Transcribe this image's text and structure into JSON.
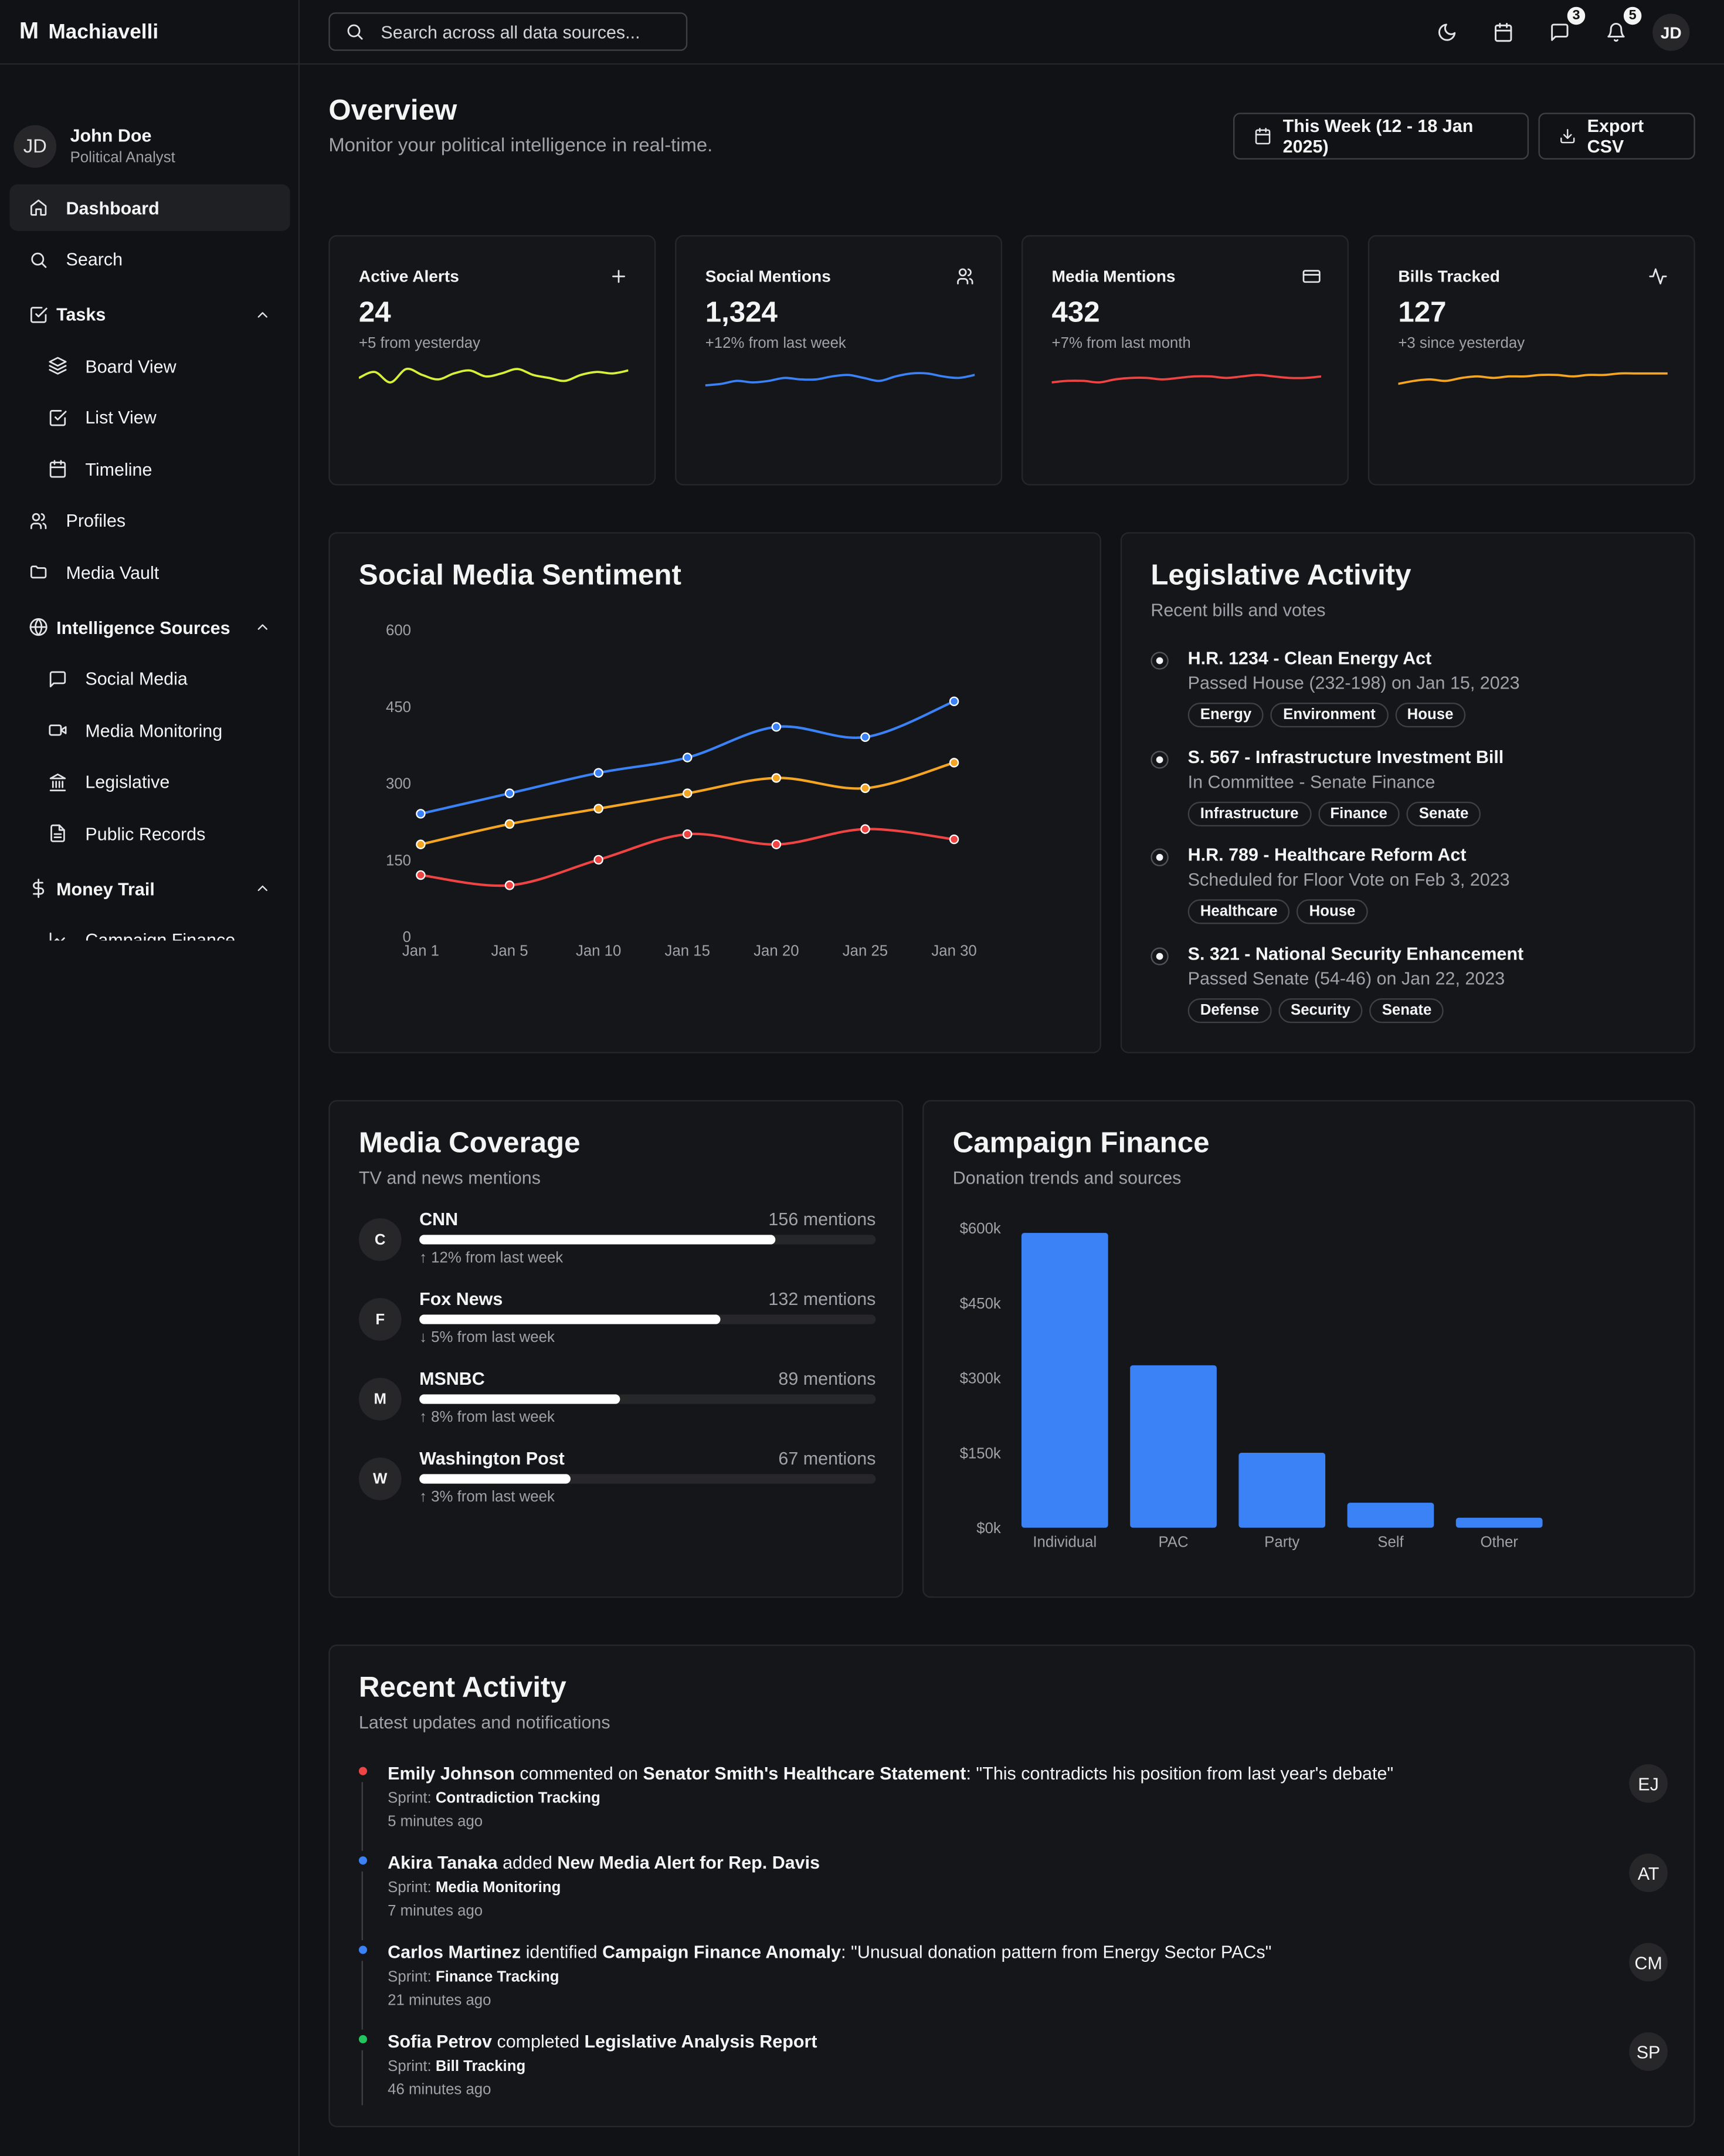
{
  "app": {
    "logo": "M",
    "name": "Machiavelli"
  },
  "user": {
    "initials": "JD",
    "name": "John Doe",
    "role": "Political Analyst"
  },
  "sidebar": {
    "items": [
      {
        "label": "Dashboard",
        "icon": "home-icon",
        "active": true
      },
      {
        "label": "Search",
        "icon": "search-icon"
      }
    ],
    "tasks": {
      "label": "Tasks",
      "items": [
        {
          "label": "Board View",
          "icon": "layers-icon"
        },
        {
          "label": "List View",
          "icon": "check-square-icon"
        },
        {
          "label": "Timeline",
          "icon": "calendar-icon"
        }
      ]
    },
    "items2": [
      {
        "label": "Profiles",
        "icon": "users-icon"
      },
      {
        "label": "Media Vault",
        "icon": "folder-icon"
      }
    ],
    "intel": {
      "label": "Intelligence Sources",
      "items": [
        {
          "label": "Social Media",
          "icon": "message-square-icon"
        },
        {
          "label": "Media Monitoring",
          "icon": "video-icon"
        },
        {
          "label": "Legislative",
          "icon": "landmark-icon"
        },
        {
          "label": "Public Records",
          "icon": "file-text-icon"
        }
      ]
    },
    "money": {
      "label": "Money Trail",
      "items": [
        {
          "label": "Campaign Finance",
          "icon": "chart-icon"
        }
      ]
    }
  },
  "topbar": {
    "search_placeholder": "Search across all data sources...",
    "messages_badge": "3",
    "notifications_badge": "5",
    "avatar": "JD"
  },
  "header": {
    "title": "Overview",
    "subtitle": "Monitor your political intelligence in real-time.",
    "date_range": "This Week (12 - 18 Jan 2025)",
    "export": "Export CSV"
  },
  "stats": [
    {
      "label": "Active Alerts",
      "value": "24",
      "delta": "+5 from yesterday",
      "color": "#d9f03a",
      "icon": "plus-icon",
      "spark": [
        14,
        18,
        11,
        20,
        16,
        13,
        17,
        19,
        15,
        17,
        20,
        16,
        14,
        12,
        16,
        18,
        17,
        19
      ]
    },
    {
      "label": "Social Mentions",
      "value": "1,324",
      "delta": "+12% from last week",
      "color": "#3b82f6",
      "icon": "users-icon",
      "spark": [
        9,
        10,
        12,
        11,
        12,
        14,
        13,
        13,
        15,
        16,
        14,
        12,
        15,
        17,
        17,
        15,
        14,
        16
      ]
    },
    {
      "label": "Media Mentions",
      "value": "432",
      "delta": "+7% from last month",
      "color": "#ef4444",
      "icon": "credit-card-icon",
      "spark": [
        11,
        12,
        12,
        11,
        13,
        14,
        14,
        13,
        14,
        15,
        15,
        14,
        15,
        16,
        15,
        14,
        14,
        15
      ]
    },
    {
      "label": "Bills Tracked",
      "value": "127",
      "delta": "+3 since yesterday",
      "color": "#f5a524",
      "icon": "activity-icon",
      "spark": [
        10,
        12,
        13,
        12,
        14,
        15,
        14,
        15,
        15,
        16,
        16,
        15,
        16,
        16,
        17,
        17,
        17,
        17
      ]
    }
  ],
  "sentiment": {
    "title": "Social Media Sentiment",
    "chart_data": {
      "type": "line",
      "x": [
        "Jan 1",
        "Jan 5",
        "Jan 10",
        "Jan 15",
        "Jan 20",
        "Jan 25",
        "Jan 30"
      ],
      "yticks": [
        0,
        150,
        300,
        450,
        600
      ],
      "ylim": [
        0,
        600
      ],
      "series": [
        {
          "color": "#3b82f6",
          "values": [
            240,
            280,
            320,
            350,
            410,
            390,
            460
          ]
        },
        {
          "color": "#f5a524",
          "values": [
            180,
            220,
            250,
            280,
            310,
            290,
            340
          ]
        },
        {
          "color": "#ef4444",
          "values": [
            120,
            100,
            150,
            200,
            180,
            210,
            190
          ]
        }
      ]
    }
  },
  "legislative": {
    "title": "Legislative Activity",
    "subtitle": "Recent bills and votes",
    "bills": [
      {
        "title": "H.R. 1234 - Clean Energy Act",
        "status": "Passed House (232-198) on Jan 15, 2023",
        "tags": [
          "Energy",
          "Environment",
          "House"
        ]
      },
      {
        "title": "S. 567 - Infrastructure Investment Bill",
        "status": "In Committee - Senate Finance",
        "tags": [
          "Infrastructure",
          "Finance",
          "Senate"
        ]
      },
      {
        "title": "H.R. 789 - Healthcare Reform Act",
        "status": "Scheduled for Floor Vote on Feb 3, 2023",
        "tags": [
          "Healthcare",
          "House"
        ]
      },
      {
        "title": "S. 321 - National Security Enhancement",
        "status": "Passed Senate (54-46) on Jan 22, 2023",
        "tags": [
          "Defense",
          "Security",
          "Senate"
        ]
      }
    ]
  },
  "media": {
    "title": "Media Coverage",
    "subtitle": "TV and news mentions",
    "outlets": [
      {
        "initial": "C",
        "name": "CNN",
        "count": "156 mentions",
        "fill": 0.78,
        "delta": "12% from last week",
        "dir": "up"
      },
      {
        "initial": "F",
        "name": "Fox News",
        "count": "132 mentions",
        "fill": 0.66,
        "delta": "5% from last week",
        "dir": "down"
      },
      {
        "initial": "M",
        "name": "MSNBC",
        "count": "89 mentions",
        "fill": 0.44,
        "delta": "8% from last week",
        "dir": "up"
      },
      {
        "initial": "W",
        "name": "Washington Post",
        "count": "67 mentions",
        "fill": 0.33,
        "delta": "3% from last week",
        "dir": "up"
      }
    ]
  },
  "finance": {
    "title": "Campaign Finance",
    "subtitle": "Donation trends and sources",
    "chart_data": {
      "type": "bar",
      "categories": [
        "Individual",
        "PAC",
        "Party",
        "Self",
        "Other"
      ],
      "values": [
        590000,
        325000,
        150000,
        50000,
        20000
      ],
      "yticks": [
        "$0k",
        "$150k",
        "$300k",
        "$450k",
        "$600k"
      ],
      "ylim": [
        0,
        600000
      ],
      "color": "#3b82f6"
    }
  },
  "activity": {
    "title": "Recent Activity",
    "subtitle": "Latest updates and notifications",
    "sprint_label": "Sprint:",
    "items": [
      {
        "color": "#ef4444",
        "who": "Emily Johnson",
        "verb": " commented on ",
        "target": "Senator Smith's Healthcare Statement",
        "extra": ": \"This contradicts his position from last year's debate\"",
        "sprint": "Contradiction Tracking",
        "time": "5 minutes ago",
        "initials": "EJ"
      },
      {
        "color": "#3b82f6",
        "who": "Akira Tanaka",
        "verb": " added ",
        "target": "New Media Alert for Rep. Davis",
        "extra": "",
        "sprint": "Media Monitoring",
        "time": "7 minutes ago",
        "initials": "AT"
      },
      {
        "color": "#3b82f6",
        "who": "Carlos Martinez",
        "verb": " identified ",
        "target": "Campaign Finance Anomaly",
        "extra": ": \"Unusual donation pattern from Energy Sector PACs\"",
        "sprint": "Finance Tracking",
        "time": "21 minutes ago",
        "initials": "CM"
      },
      {
        "color": "#22c55e",
        "who": "Sofia Petrov",
        "verb": " completed ",
        "target": "Legislative Analysis Report",
        "extra": "",
        "sprint": "Bill Tracking",
        "time": "46 minutes ago",
        "initials": "SP"
      }
    ]
  }
}
